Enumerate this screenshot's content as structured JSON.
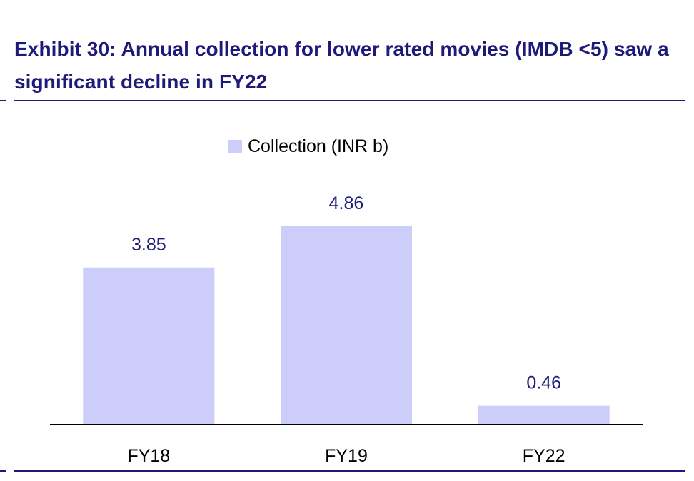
{
  "title": "Exhibit 30: Annual collection for lower rated movies (IMDB <5) saw a significant decline in FY22",
  "colors": {
    "title": "#1f1a7a",
    "bar": "#cccdf8",
    "data_label": "#1f1a7a",
    "axis": "#000000"
  },
  "chart_data": {
    "type": "bar",
    "categories": [
      "FY18",
      "FY19",
      "FY22"
    ],
    "series": [
      {
        "name": "Collection (INR b)",
        "values": [
          3.85,
          4.86,
          0.46
        ]
      }
    ],
    "data_labels": [
      "3.85",
      "4.86",
      "0.46"
    ],
    "legend": {
      "entries": [
        "Collection (INR b)"
      ],
      "placement": "top-center"
    },
    "grid": false,
    "ylim": [
      0,
      6
    ]
  }
}
